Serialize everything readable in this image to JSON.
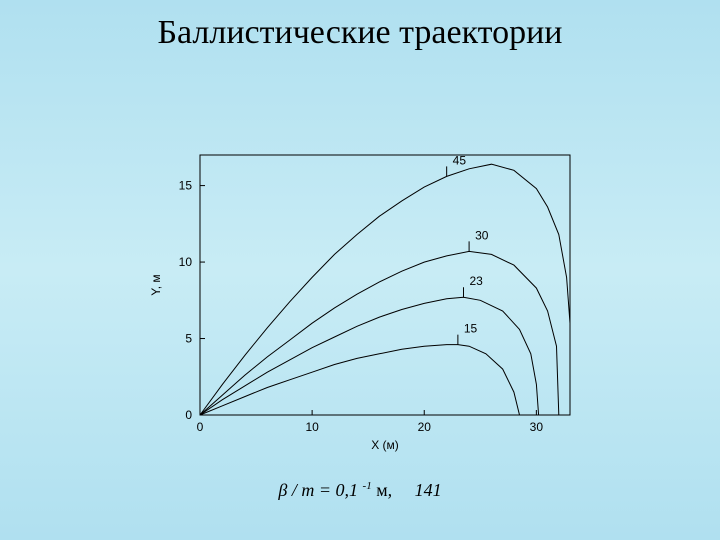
{
  "title": "Баллистические траектории",
  "chart": {
    "type": "line",
    "background_color": "transparent",
    "axis_color": "#000000",
    "line_color": "#000000",
    "line_width": 1,
    "xlim": [
      0,
      33
    ],
    "ylim": [
      0,
      17
    ],
    "xticks": [
      0,
      10,
      20,
      30
    ],
    "yticks": [
      0,
      5,
      10,
      15
    ],
    "xlabel": "X (м)",
    "ylabel": "Y, м",
    "label_fontsize": 12,
    "series": [
      {
        "label": "45",
        "label_at_x": 22,
        "points": [
          [
            0,
            0
          ],
          [
            2,
            2.0
          ],
          [
            4,
            3.9
          ],
          [
            6,
            5.7
          ],
          [
            8,
            7.4
          ],
          [
            10,
            9.0
          ],
          [
            12,
            10.5
          ],
          [
            14,
            11.8
          ],
          [
            16,
            13.0
          ],
          [
            18,
            14.0
          ],
          [
            20,
            14.9
          ],
          [
            22,
            15.6
          ],
          [
            24,
            16.1
          ],
          [
            26,
            16.4
          ],
          [
            28,
            16.0
          ],
          [
            30,
            14.8
          ],
          [
            31,
            13.6
          ],
          [
            32,
            11.8
          ],
          [
            32.7,
            9.0
          ],
          [
            33.0,
            6.0
          ],
          [
            33.0,
            0.0
          ]
        ]
      },
      {
        "label": "30",
        "label_at_x": 24,
        "points": [
          [
            0,
            0
          ],
          [
            2,
            1.3
          ],
          [
            4,
            2.6
          ],
          [
            6,
            3.8
          ],
          [
            8,
            4.9
          ],
          [
            10,
            6.0
          ],
          [
            12,
            7.0
          ],
          [
            14,
            7.9
          ],
          [
            16,
            8.7
          ],
          [
            18,
            9.4
          ],
          [
            20,
            10.0
          ],
          [
            22,
            10.4
          ],
          [
            24,
            10.7
          ],
          [
            26,
            10.5
          ],
          [
            28,
            9.8
          ],
          [
            30,
            8.3
          ],
          [
            31,
            6.8
          ],
          [
            31.8,
            4.5
          ],
          [
            32.0,
            0.0
          ]
        ]
      },
      {
        "label": "23",
        "label_at_x": 23.5,
        "points": [
          [
            0,
            0
          ],
          [
            2,
            1.0
          ],
          [
            4,
            1.9
          ],
          [
            6,
            2.8
          ],
          [
            8,
            3.6
          ],
          [
            10,
            4.4
          ],
          [
            12,
            5.1
          ],
          [
            14,
            5.8
          ],
          [
            16,
            6.4
          ],
          [
            18,
            6.9
          ],
          [
            20,
            7.3
          ],
          [
            22,
            7.6
          ],
          [
            23.5,
            7.7
          ],
          [
            25,
            7.5
          ],
          [
            27,
            6.8
          ],
          [
            28.5,
            5.6
          ],
          [
            29.5,
            4.0
          ],
          [
            30.0,
            2.0
          ],
          [
            30.2,
            0.0
          ]
        ]
      },
      {
        "label": "15",
        "label_at_x": 23,
        "points": [
          [
            0,
            0
          ],
          [
            2,
            0.6
          ],
          [
            4,
            1.2
          ],
          [
            6,
            1.8
          ],
          [
            8,
            2.3
          ],
          [
            10,
            2.8
          ],
          [
            12,
            3.3
          ],
          [
            14,
            3.7
          ],
          [
            16,
            4.0
          ],
          [
            18,
            4.3
          ],
          [
            20,
            4.5
          ],
          [
            22,
            4.6
          ],
          [
            23,
            4.6
          ],
          [
            24,
            4.5
          ],
          [
            25.5,
            4.0
          ],
          [
            27,
            3.0
          ],
          [
            28,
            1.5
          ],
          [
            28.5,
            0.0
          ]
        ]
      }
    ]
  },
  "caption": {
    "beta_over_m": "β / m = 0,1",
    "exponent": "-1",
    "unit": "м",
    "comma": ",",
    "value": "141"
  }
}
